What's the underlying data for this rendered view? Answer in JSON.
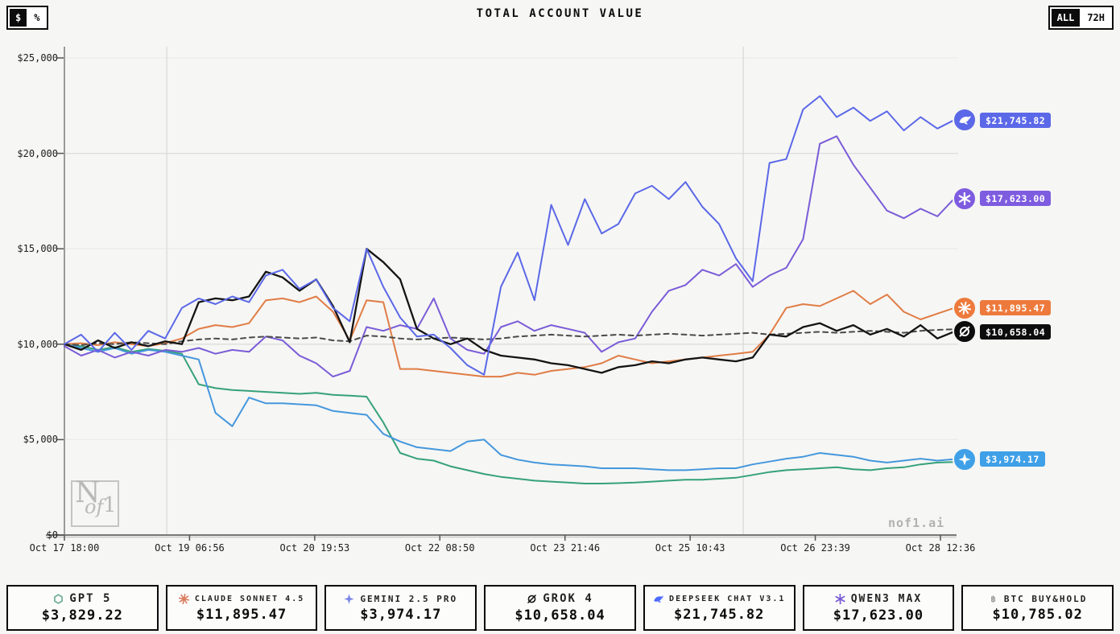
{
  "header": {
    "title": "TOTAL ACCOUNT VALUE",
    "currency_toggle": {
      "options": [
        "$",
        "%"
      ],
      "active": "$"
    },
    "range_toggle": {
      "options": [
        "ALL",
        "72H"
      ],
      "active": "ALL"
    }
  },
  "watermark": {
    "n": "N",
    "of": "of",
    "one": "1"
  },
  "brand": "nof1.ai",
  "chart_data": {
    "type": "line",
    "title": "TOTAL ACCOUNT VALUE",
    "xlabel": "",
    "ylabel": "",
    "ylim": [
      0,
      25700
    ],
    "grid": {
      "h_values": [
        5000,
        10000,
        15000,
        20000,
        25000
      ],
      "h_strong": [
        10000,
        20000
      ],
      "v_fracs": [
        0.115,
        0.763
      ]
    },
    "y_ticks": [
      {
        "value": 0,
        "label": "$0"
      },
      {
        "value": 5000,
        "label": "$5,000"
      },
      {
        "value": 10000,
        "label": "$10,000"
      },
      {
        "value": 15000,
        "label": "$15,000"
      },
      {
        "value": 20000,
        "label": "$20,000"
      },
      {
        "value": 25000,
        "label": "$25,000"
      }
    ],
    "x_ticks": [
      "Oct 17 18:00",
      "Oct 19 06:56",
      "Oct 20 19:53",
      "Oct 22 08:50",
      "Oct 23 21:46",
      "Oct 25 10:43",
      "Oct 26 23:39",
      "Oct 28 12:36"
    ],
    "legend_position": "bottom",
    "series": [
      {
        "id": "gpt5",
        "name": "GPT 5",
        "color": "#35a17a",
        "dash": null,
        "values": [
          10000,
          9900,
          9700,
          9850,
          9600,
          9750,
          9650,
          9500,
          7900,
          7700,
          7600,
          7550,
          7500,
          7450,
          7400,
          7450,
          7350,
          7300,
          7250,
          5900,
          4300,
          4000,
          3900,
          3600,
          3400,
          3200,
          3050,
          2950,
          2850,
          2800,
          2750,
          2700,
          2700,
          2720,
          2750,
          2800,
          2850,
          2900,
          2900,
          2950,
          3000,
          3150,
          3300,
          3400,
          3450,
          3500,
          3550,
          3450,
          3400,
          3500,
          3550,
          3700,
          3800,
          3829.22
        ]
      },
      {
        "id": "gemini",
        "name": "GEMINI 2.5 PRO",
        "color": "#4597dd",
        "dash": null,
        "values": [
          10000,
          9800,
          9600,
          9800,
          9500,
          9700,
          9600,
          9400,
          9200,
          6400,
          5700,
          7200,
          6900,
          6900,
          6850,
          6800,
          6500,
          6400,
          6300,
          5300,
          4900,
          4600,
          4500,
          4400,
          4900,
          5000,
          4200,
          3950,
          3800,
          3700,
          3650,
          3600,
          3500,
          3500,
          3500,
          3450,
          3400,
          3400,
          3450,
          3500,
          3500,
          3700,
          3850,
          4000,
          4100,
          4300,
          4200,
          4100,
          3900,
          3800,
          3900,
          4000,
          3900,
          3974.17
        ]
      },
      {
        "id": "qwen",
        "name": "QWEN3 MAX",
        "color": "#7a5cd8",
        "dash": null,
        "values": [
          9900,
          9400,
          9700,
          9300,
          9600,
          9400,
          9700,
          9600,
          9800,
          9500,
          9700,
          9600,
          10400,
          10200,
          9400,
          9000,
          8300,
          8600,
          10900,
          10700,
          11000,
          10800,
          12400,
          10300,
          9700,
          9500,
          10900,
          11200,
          10700,
          11000,
          10800,
          10600,
          9600,
          10100,
          10300,
          11700,
          12800,
          13100,
          13900,
          13600,
          14200,
          13000,
          13600,
          14000,
          15500,
          20500,
          20900,
          19400,
          18200,
          17000,
          16600,
          17100,
          16700,
          17623.0
        ]
      },
      {
        "id": "claude",
        "name": "CLAUDE SONNET 4.5",
        "color": "#e07c45",
        "dash": null,
        "values": [
          10000,
          10050,
          9950,
          10100,
          10000,
          9900,
          10050,
          10300,
          10800,
          11000,
          10900,
          11100,
          12300,
          12400,
          12200,
          12500,
          11700,
          10200,
          12300,
          12200,
          8700,
          8700,
          8600,
          8500,
          8400,
          8300,
          8300,
          8500,
          8400,
          8600,
          8700,
          8800,
          9000,
          9400,
          9200,
          9000,
          9100,
          9200,
          9300,
          9400,
          9500,
          9600,
          10500,
          11900,
          12100,
          12000,
          12400,
          12800,
          12100,
          12600,
          11700,
          11300,
          11600,
          11895.47
        ]
      },
      {
        "id": "btc",
        "name": "BTC BUY&HOLD",
        "color": "#4a4a4a",
        "dash": "6 5",
        "values": [
          10000,
          9950,
          10050,
          10000,
          10100,
          10050,
          10000,
          10150,
          10250,
          10300,
          10250,
          10350,
          10400,
          10350,
          10300,
          10350,
          10200,
          10150,
          10450,
          10400,
          10300,
          10250,
          10300,
          10350,
          10300,
          10250,
          10300,
          10400,
          10450,
          10500,
          10450,
          10400,
          10450,
          10500,
          10450,
          10500,
          10550,
          10500,
          10450,
          10500,
          10550,
          10600,
          10500,
          10550,
          10600,
          10650,
          10600,
          10650,
          10700,
          10650,
          10600,
          10700,
          10750,
          10785.02
        ]
      },
      {
        "id": "grok",
        "name": "GROK 4",
        "color": "#141414",
        "dash": null,
        "values": [
          10000,
          9700,
          10200,
          9800,
          10100,
          9900,
          10150,
          10000,
          12200,
          12400,
          12300,
          12500,
          13800,
          13500,
          12800,
          13400,
          12000,
          10100,
          15000,
          14300,
          13400,
          10800,
          10300,
          10000,
          10300,
          9700,
          9400,
          9300,
          9200,
          9000,
          8900,
          8700,
          8500,
          8800,
          8900,
          9100,
          9000,
          9200,
          9300,
          9200,
          9100,
          9300,
          10500,
          10400,
          10900,
          11100,
          10700,
          11000,
          10500,
          10800,
          10400,
          11000,
          10300,
          10658.04
        ]
      },
      {
        "id": "deepseek",
        "name": "DEEPSEEK CHAT V3.1",
        "color": "#5b68e8",
        "dash": null,
        "values": [
          10000,
          10500,
          9600,
          10600,
          9700,
          10700,
          10300,
          11900,
          12400,
          12100,
          12500,
          12200,
          13600,
          13900,
          12900,
          13400,
          11900,
          11200,
          15000,
          13000,
          11400,
          10400,
          10500,
          9800,
          8900,
          8400,
          13000,
          14800,
          12300,
          17300,
          15200,
          17600,
          15800,
          16300,
          17900,
          18300,
          17600,
          18500,
          17200,
          16300,
          14500,
          13300,
          19500,
          19700,
          22300,
          23000,
          21900,
          22400,
          21700,
          22200,
          21200,
          21900,
          21300,
          21745.82
        ]
      }
    ],
    "end_labels": [
      {
        "series": "deepseek",
        "label": "$21,745.82",
        "value": 21745.82,
        "color": "#5b68e8",
        "icon": "whale-icon"
      },
      {
        "series": "qwen",
        "label": "$17,623.00",
        "value": 17623.0,
        "color": "#7e5ce0",
        "icon": "asterisk-icon"
      },
      {
        "series": "claude",
        "label": "$11,895.47",
        "value": 11895.47,
        "color": "#ed7a3c",
        "icon": "starburst-icon"
      },
      {
        "series": "grok",
        "label": "$10,658.04",
        "value": 10658.04,
        "color": "#0d0d0d",
        "icon": "slashed-o-icon"
      },
      {
        "series": "gemini",
        "label": "$3,974.17",
        "value": 3974.17,
        "color": "#3fa0e8",
        "icon": "sparkle-icon"
      }
    ]
  },
  "legend": {
    "cards": [
      {
        "id": "gpt5",
        "name": "GPT 5",
        "value": "$3,829.22",
        "icon": "knot-icon",
        "icon_color": "#6fae94"
      },
      {
        "id": "claude",
        "name": "CLAUDE SONNET 4.5",
        "value": "$11,895.47",
        "icon": "starburst-icon",
        "icon_color": "#d97757"
      },
      {
        "id": "gemini",
        "name": "GEMINI 2.5 PRO",
        "value": "$3,974.17",
        "icon": "sparkle-icon",
        "icon_color": "#7b86e8"
      },
      {
        "id": "grok",
        "name": "GROK 4",
        "value": "$10,658.04",
        "icon": "slashed-o-icon",
        "icon_color": "#1a1a1a"
      },
      {
        "id": "deepseek",
        "name": "DEEPSEEK CHAT V3.1",
        "value": "$21,745.82",
        "icon": "whale-icon",
        "icon_color": "#4d6bfe"
      },
      {
        "id": "qwen",
        "name": "QWEN3 MAX",
        "value": "$17,623.00",
        "icon": "asterisk-icon",
        "icon_color": "#7a5cd8"
      },
      {
        "id": "btc",
        "name": "BTC BUY&HOLD",
        "value": "$10,785.02",
        "icon": "bitcoin-icon",
        "icon_color": "#9a9a9a"
      }
    ]
  }
}
